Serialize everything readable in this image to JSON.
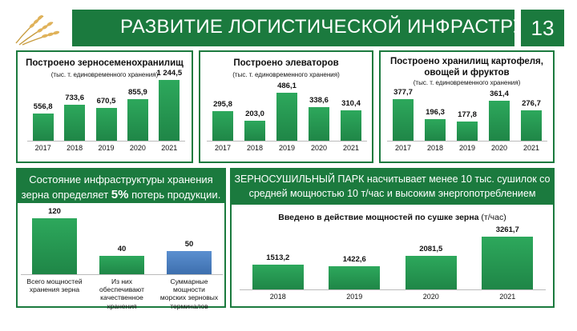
{
  "header": {
    "title": "РАЗВИТИЕ ЛОГИСТИЧЕСКОЙ ИНФРАСТРУКТУРЫ",
    "page_number": "13"
  },
  "logo_icon": "wheat-ears-icon",
  "colors": {
    "brand_green": "#1b7a3e",
    "bar_green": "#2a9a55",
    "bar_blue": "#4a80c0"
  },
  "panel1": {
    "title": "Построено зерносеменохранилищ",
    "subtitle": "(тыс. т. единовременного хранения)"
  },
  "panel2": {
    "title": "Построено элеваторов",
    "subtitle": "(тыс. т. единовременного хранения)"
  },
  "panel3": {
    "title_line1": "Построено хранилищ картофеля,",
    "title_line2": "овощей и фруктов",
    "subtitle": "(тыс. т. единовременного хранения)"
  },
  "panel4": {
    "banner_line1": "Состояние инфраструктуры хранения",
    "banner_line2_pre": "зерна определяет ",
    "banner_highlight": "5%",
    "banner_line2_post": " потерь продукции."
  },
  "panel5": {
    "banner_line1": "ЗЕРНОСУШИЛЬНЫЙ ПАРК насчитывает менее 10 тыс. сушилок со",
    "banner_line2": "средней мощностью 10 т/час и высоким энергопотреблением",
    "chart_title": "Введено в действие мощностей по сушке зерна",
    "chart_unit": " (т/час)"
  },
  "chart_data": [
    {
      "type": "bar",
      "categories": [
        "2017",
        "2018",
        "2019",
        "2020",
        "2021"
      ],
      "values": [
        556.8,
        733.6,
        670.5,
        855.9,
        1244.5
      ],
      "labels": [
        "556,8",
        "733,6",
        "670,5",
        "855,9",
        "1 244,5"
      ],
      "title": "Построено зерносеменохранилищ",
      "subtitle": "(тыс. т. единовременного хранения)"
    },
    {
      "type": "bar",
      "categories": [
        "2017",
        "2018",
        "2019",
        "2020",
        "2021"
      ],
      "values": [
        295.8,
        203.0,
        486.1,
        338.6,
        310.4
      ],
      "labels": [
        "295,8",
        "203,0",
        "486,1",
        "338,6",
        "310,4"
      ],
      "title": "Построено элеваторов",
      "subtitle": "(тыс. т. единовременного хранения)"
    },
    {
      "type": "bar",
      "categories": [
        "2017",
        "2018",
        "2019",
        "2020",
        "2021"
      ],
      "values": [
        377.7,
        196.3,
        177.8,
        361.4,
        276.7
      ],
      "labels": [
        "377,7",
        "196,3",
        "177,8",
        "361,4",
        "276,7"
      ],
      "title": "Построено хранилищ картофеля, овощей и фруктов",
      "subtitle": "(тыс. т. единовременного хранения)"
    },
    {
      "type": "bar",
      "categories": [
        "Всего мощностей хранения зерна",
        "Из них обеспечивают качественное хранения",
        "Суммарные мощности морских зерновых терминалов"
      ],
      "category_lines": [
        [
          "Всего мощностей",
          "хранения зерна"
        ],
        [
          "Из них обеспечивают",
          "качественное хранения"
        ],
        [
          "Суммарные мощности",
          "морских зерновых",
          "терминалов"
        ]
      ],
      "values": [
        120,
        40,
        50
      ],
      "labels": [
        "120",
        "40",
        "50"
      ],
      "colors": [
        "green",
        "green",
        "blue"
      ]
    },
    {
      "type": "bar",
      "categories": [
        "2018",
        "2019",
        "2020",
        "2021"
      ],
      "values": [
        1513.2,
        1422.6,
        2081.5,
        3261.7
      ],
      "labels": [
        "1513,2",
        "1422,6",
        "2081,5",
        "3261,7"
      ],
      "title": "Введено в действие мощностей по сушке зерна",
      "ylabel": "т/час"
    }
  ]
}
